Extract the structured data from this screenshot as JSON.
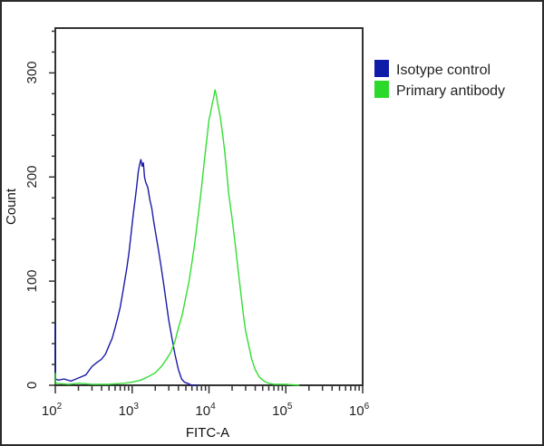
{
  "chart_data": {
    "type": "line",
    "title": "",
    "xlabel": "FITC-A",
    "ylabel": "Count",
    "xscale": "log",
    "xlim": [
      100,
      1000000
    ],
    "ylim": [
      0,
      343
    ],
    "x_ticks": [
      {
        "value": 100,
        "base": "10",
        "exp": "2"
      },
      {
        "value": 1000,
        "base": "10",
        "exp": "3"
      },
      {
        "value": 10000,
        "base": "10",
        "exp": "4"
      },
      {
        "value": 100000,
        "base": "10",
        "exp": "5"
      },
      {
        "value": 1000000,
        "base": "10",
        "exp": "6"
      }
    ],
    "y_ticks": [
      0,
      100,
      200,
      300
    ],
    "grid": false,
    "legend_position": "right-outside-top",
    "series": [
      {
        "name": "Isotype control",
        "color": "#1a1aa8",
        "x": [
          100,
          100,
          110,
          130,
          160,
          200,
          250,
          300,
          350,
          400,
          450,
          500,
          550,
          600,
          650,
          700,
          750,
          800,
          850,
          900,
          950,
          1000,
          1050,
          1100,
          1150,
          1200,
          1250,
          1300,
          1350,
          1400,
          1450,
          1500,
          1600,
          1700,
          1800,
          1900,
          2000,
          2200,
          2400,
          2600,
          2800,
          3000,
          3300,
          3600,
          4000,
          4400,
          4800,
          5200,
          5600,
          6000,
          7000
        ],
        "values": [
          60,
          6,
          5,
          6,
          4,
          7,
          10,
          18,
          22,
          25,
          30,
          38,
          45,
          55,
          65,
          75,
          88,
          100,
          112,
          125,
          140,
          155,
          168,
          180,
          192,
          205,
          212,
          217,
          210,
          214,
          200,
          195,
          190,
          178,
          170,
          158,
          148,
          130,
          112,
          95,
          78,
          62,
          45,
          30,
          15,
          6,
          3,
          2,
          1,
          0,
          0
        ]
      },
      {
        "name": "Primary antibody",
        "color": "#33dd33",
        "x": [
          100,
          100,
          150,
          200,
          300,
          500,
          800,
          1000,
          1300,
          1600,
          2000,
          2400,
          2800,
          3200,
          3600,
          4000,
          4500,
          5000,
          5500,
          6000,
          6500,
          7000,
          7500,
          8000,
          8500,
          9000,
          9500,
          10000,
          10500,
          11000,
          11500,
          12000,
          12500,
          13000,
          14000,
          15000,
          16000,
          17000,
          18000,
          20000,
          22000,
          24000,
          26000,
          28000,
          30000,
          33000,
          36000,
          40000,
          45000,
          50000,
          55000,
          60000,
          70000,
          80000,
          100000,
          150000
        ],
        "values": [
          12,
          2,
          1,
          2,
          1,
          1,
          2,
          3,
          5,
          8,
          12,
          18,
          25,
          32,
          42,
          55,
          68,
          85,
          100,
          118,
          135,
          155,
          172,
          190,
          208,
          225,
          240,
          255,
          262,
          270,
          276,
          284,
          278,
          270,
          258,
          242,
          225,
          205,
          185,
          160,
          135,
          110,
          88,
          68,
          52,
          38,
          25,
          15,
          8,
          5,
          3,
          2,
          1,
          1,
          1,
          0
        ]
      }
    ]
  },
  "legend": {
    "items": [
      {
        "label": "Isotype control",
        "color": "#0f1ca8"
      },
      {
        "label": "Primary antibody",
        "color": "#2bd92b"
      }
    ]
  },
  "axes": {
    "x_title": "FITC-A",
    "y_title": "Count",
    "y_tick_labels": [
      "0",
      "100",
      "200",
      "300"
    ]
  }
}
